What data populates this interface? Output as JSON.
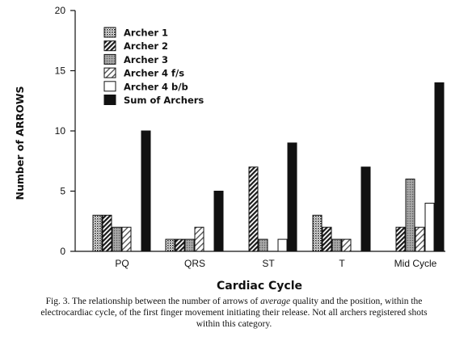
{
  "chart_data": {
    "type": "bar",
    "title": "",
    "xlabel": "Cardiac Cycle",
    "ylabel": "Number of ARROWS",
    "ylim": [
      0,
      20
    ],
    "yticks": [
      "0",
      "5",
      "10",
      "15",
      "20"
    ],
    "categories": [
      "PQ",
      "QRS",
      "ST",
      "T",
      "Mid Cycle"
    ],
    "legend_position": "top-left",
    "series": [
      {
        "name": "Archer 1",
        "pattern": "dots",
        "values": [
          3,
          1,
          null,
          3,
          null
        ]
      },
      {
        "name": "Archer 2",
        "pattern": "diagonal-hatch",
        "values": [
          3,
          1,
          7,
          2,
          2
        ]
      },
      {
        "name": "Archer 3",
        "pattern": "gray-stipple",
        "values": [
          2,
          1,
          1,
          1,
          6
        ]
      },
      {
        "name": "Archer 4 f/s",
        "pattern": "light-hatch",
        "values": [
          2,
          2,
          null,
          1,
          2
        ]
      },
      {
        "name": "Archer 4 b/b",
        "pattern": "white",
        "values": [
          null,
          null,
          1,
          null,
          4
        ]
      },
      {
        "name": "Sum of Archers",
        "pattern": "solid-black",
        "values": [
          10,
          5,
          9,
          7,
          14
        ]
      }
    ]
  },
  "caption": {
    "line1_before": "Fig. 3. The relationship between the number of arrows of ",
    "line1_emph": "average",
    "line1_after": " quality and the position, within the",
    "line2": "electrocardiac cycle, of the first finger movement initiating their release. Not all archers registered shots",
    "line3": "within this category."
  }
}
